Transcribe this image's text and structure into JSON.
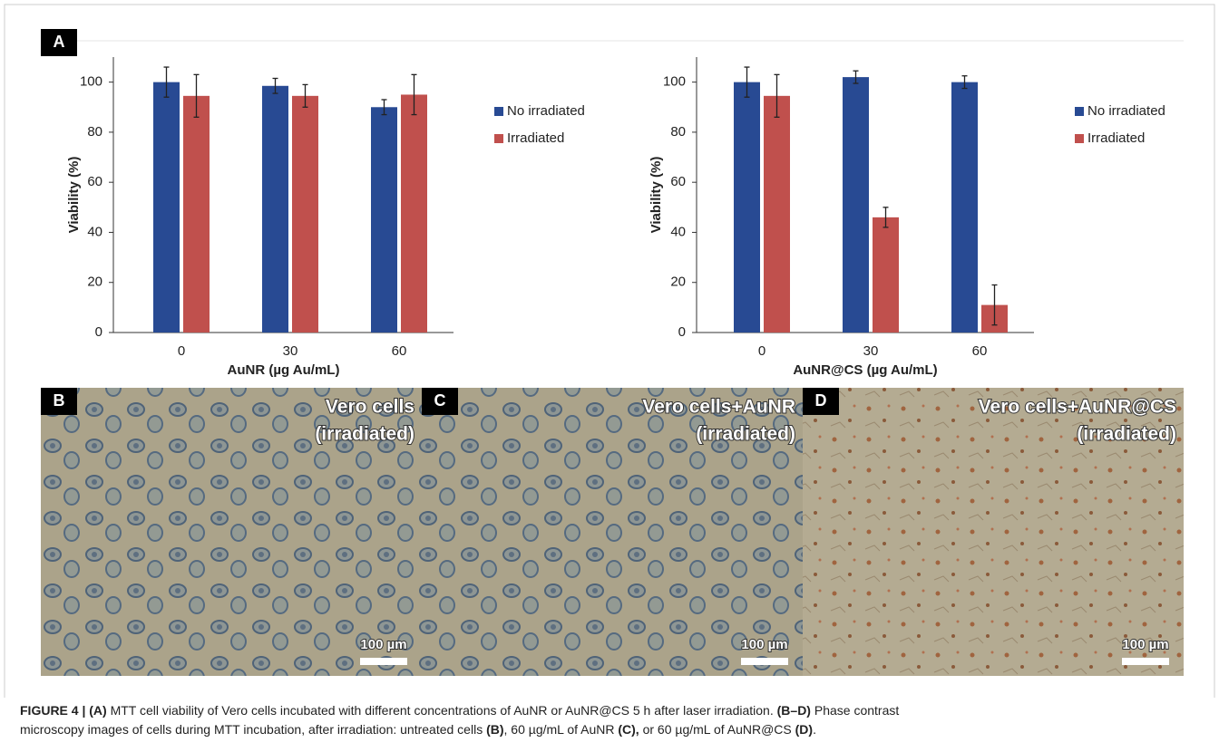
{
  "panel_label": "A",
  "chart_data": [
    {
      "type": "bar",
      "x_label": "AuNR (µg Au/mL)",
      "y_label": "Viability (%)",
      "categories": [
        "0",
        "30",
        "60"
      ],
      "series": [
        {
          "name": "No irradiated",
          "color": "#284a93",
          "values": [
            100,
            98.5,
            90
          ],
          "errors": [
            6,
            3,
            3
          ]
        },
        {
          "name": "Irradiated",
          "color": "#c0504d",
          "values": [
            94.5,
            94.5,
            95
          ],
          "errors": [
            8.5,
            4.5,
            8
          ]
        }
      ],
      "ylim": [
        0,
        110
      ],
      "yticks": [
        0,
        20,
        40,
        60,
        80,
        100
      ],
      "legend": "right"
    },
    {
      "type": "bar",
      "x_label": "AuNR@CS (µg Au/mL)",
      "y_label": "Viability (%)",
      "categories": [
        "0",
        "30",
        "60"
      ],
      "series": [
        {
          "name": "No irradiated",
          "color": "#284a93",
          "values": [
            100,
            102,
            100
          ],
          "errors": [
            6,
            2.5,
            2.5
          ]
        },
        {
          "name": "Irradiated",
          "color": "#c0504d",
          "values": [
            94.5,
            46,
            11
          ],
          "errors": [
            8.5,
            4,
            8
          ]
        }
      ],
      "ylim": [
        0,
        110
      ],
      "yticks": [
        0,
        20,
        40,
        60,
        80,
        100
      ],
      "legend": "right"
    }
  ],
  "images": [
    {
      "label": "B",
      "title": [
        "Vero cells",
        "(irradiated)"
      ],
      "scale_bar": "100 µm"
    },
    {
      "label": "C",
      "title": [
        "Vero cells+AuNR",
        "(irradiated)"
      ],
      "scale_bar": "100 µm"
    },
    {
      "label": "D",
      "title": [
        "Vero cells+AuNR@CS",
        "(irradiated)"
      ],
      "scale_bar": "100 µm"
    }
  ],
  "caption": {
    "lines": [
      [
        {
          "text": "FIGURE 4 | (A)",
          "bold": true
        },
        {
          "text": " MTT cell viability of Vero cells incubated with different concentrations of AuNR or AuNR@CS 5 h after laser irradiation. ",
          "bold": false
        },
        {
          "text": "(B–D)",
          "bold": true
        },
        {
          "text": " Phase contrast",
          "bold": false
        }
      ],
      [
        {
          "text": "microscopy images of cells during MTT incubation, after irradiation: untreated cells ",
          "bold": false
        },
        {
          "text": "(B)",
          "bold": true
        },
        {
          "text": ", 60 µg/mL of AuNR ",
          "bold": false
        },
        {
          "text": "(C),",
          "bold": true
        },
        {
          "text": " or 60 µg/mL of AuNR@CS ",
          "bold": false
        },
        {
          "text": "(D)",
          "bold": true
        },
        {
          "text": ".",
          "bold": false
        }
      ]
    ]
  }
}
